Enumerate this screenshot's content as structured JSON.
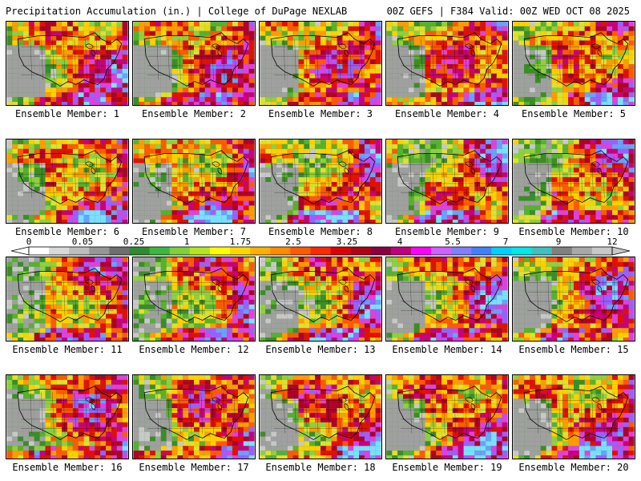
{
  "header": {
    "left_title": "Precipitation Accumulation (in.) | College of DuPage NEXLAB",
    "right_title": "00Z GEFS | F384 Valid: 00Z WED OCT 08 2025"
  },
  "members": [
    {
      "label": "Ensemble Member: 1"
    },
    {
      "label": "Ensemble Member: 2"
    },
    {
      "label": "Ensemble Member: 3"
    },
    {
      "label": "Ensemble Member: 4"
    },
    {
      "label": "Ensemble Member: 5"
    },
    {
      "label": "Ensemble Member: 6"
    },
    {
      "label": "Ensemble Member: 7"
    },
    {
      "label": "Ensemble Member: 8"
    },
    {
      "label": "Ensemble Member: 9"
    },
    {
      "label": "Ensemble Member: 10"
    },
    {
      "label": "Ensemble Member: 11"
    },
    {
      "label": "Ensemble Member: 12"
    },
    {
      "label": "Ensemble Member: 13"
    },
    {
      "label": "Ensemble Member: 14"
    },
    {
      "label": "Ensemble Member: 15"
    },
    {
      "label": "Ensemble Member: 16"
    },
    {
      "label": "Ensemble Member: 17"
    },
    {
      "label": "Ensemble Member: 18"
    },
    {
      "label": "Ensemble Member: 19"
    },
    {
      "label": "Ensemble Member: 20"
    }
  ],
  "colorbar": {
    "tick_labels": [
      "0",
      "0.05",
      "0.25",
      "1",
      "1.75",
      "2.5",
      "3.25",
      "4",
      "5.5",
      "7",
      "9",
      "12"
    ],
    "colors": [
      "#ffffff",
      "#d9d9d9",
      "#bdbdbd",
      "#969696",
      "#6f6f6f",
      "#2e8b2e",
      "#3cb83c",
      "#7dd13c",
      "#b5e61d",
      "#ffff00",
      "#ffd700",
      "#ffb000",
      "#ff8c00",
      "#ff5a00",
      "#ff2a00",
      "#e00000",
      "#b00018",
      "#8b0040",
      "#c0007a",
      "#ff00ff",
      "#d060ff",
      "#8080ff",
      "#4080ff",
      "#00d0ff",
      "#00e8e8",
      "#40c0c0",
      "#808080",
      "#a8a8a8",
      "#c8c8c8"
    ]
  }
}
